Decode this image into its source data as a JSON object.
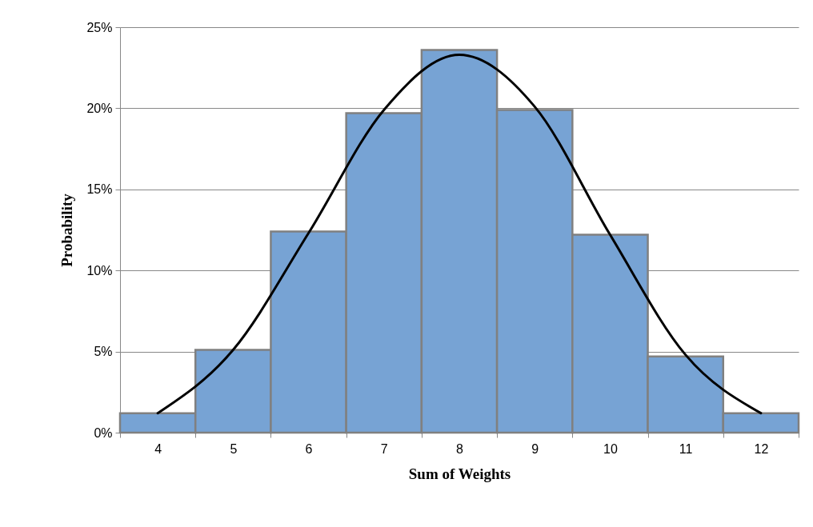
{
  "chart_data": {
    "type": "bar",
    "xlabel": "Sum of Weights",
    "ylabel": "Probability",
    "categories": [
      "4",
      "5",
      "6",
      "7",
      "8",
      "9",
      "10",
      "11",
      "12"
    ],
    "series": [
      {
        "color": "#77a3d4",
        "values": [
          1.2,
          5.1,
          12.4,
          19.7,
          23.6,
          19.9,
          12.2,
          4.7,
          1.2
        ]
      },
      {
        "type": "line",
        "color": "#000000",
        "values": [
          1.2,
          5.1,
          12.3,
          19.9,
          23.3,
          20.1,
          12.2,
          4.8,
          1.2
        ]
      }
    ],
    "ylim": [
      0,
      25
    ],
    "yticks": [
      {
        "value": 0,
        "label": "0%"
      },
      {
        "value": 5,
        "label": "5%"
      },
      {
        "value": 10,
        "label": "10%"
      },
      {
        "value": 15,
        "label": "15%"
      },
      {
        "value": 20,
        "label": "20%"
      },
      {
        "value": 25,
        "label": "25%"
      }
    ],
    "grid": "y"
  }
}
